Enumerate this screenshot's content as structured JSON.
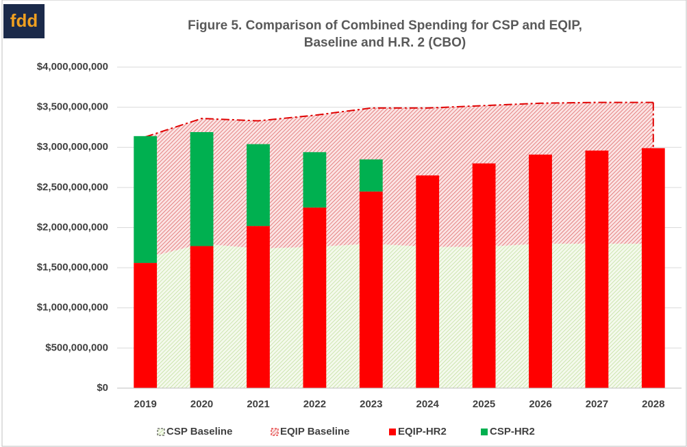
{
  "logo": "fdd",
  "chart_data": {
    "type": "bar",
    "title": [
      "Figure 5. Comparison of Combined Spending for CSP and EQIP,",
      "Baseline and H.R. 2 (CBO)"
    ],
    "categories": [
      "2019",
      "2020",
      "2021",
      "2022",
      "2023",
      "2024",
      "2025",
      "2026",
      "2027",
      "2028"
    ],
    "ylim": [
      0,
      4000000000
    ],
    "yticks": [
      {
        "value": 0,
        "label": "$0"
      },
      {
        "value": 500000000,
        "label": "$500,000,000"
      },
      {
        "value": 1000000000,
        "label": "$1,000,000,000"
      },
      {
        "value": 1500000000,
        "label": "$1,500,000,000"
      },
      {
        "value": 2000000000,
        "label": "$2,000,000,000"
      },
      {
        "value": 2500000000,
        "label": "$2,500,000,000"
      },
      {
        "value": 3000000000,
        "label": "$3,000,000,000"
      },
      {
        "value": 3500000000,
        "label": "$3,500,000,000"
      },
      {
        "value": 4000000000,
        "label": "$4,000,000,000"
      }
    ],
    "grid": true,
    "legend": "bottom",
    "series": [
      {
        "name": "CSP Baseline",
        "type": "area",
        "color": "#92d050",
        "values": [
          1620000000,
          1800000000,
          1740000000,
          1760000000,
          1800000000,
          1760000000,
          1760000000,
          1800000000,
          1800000000,
          1800000000
        ]
      },
      {
        "name": "EQIP Baseline",
        "type": "area",
        "color": "#e00000",
        "values": [
          1510000000,
          1560000000,
          1590000000,
          1640000000,
          1690000000,
          1730000000,
          1760000000,
          1750000000,
          1760000000,
          1760000000
        ]
      },
      {
        "name": "EQIP-HR2",
        "type": "bar",
        "color": "#ff0000",
        "values": [
          1560000000,
          1770000000,
          2020000000,
          2250000000,
          2450000000,
          2650000000,
          2800000000,
          2910000000,
          2960000000,
          2990000000
        ]
      },
      {
        "name": "CSP-HR2",
        "type": "bar",
        "color": "#00b050",
        "values": [
          1580000000,
          1420000000,
          1020000000,
          690000000,
          400000000,
          0,
          0,
          0,
          0,
          0
        ]
      }
    ]
  }
}
